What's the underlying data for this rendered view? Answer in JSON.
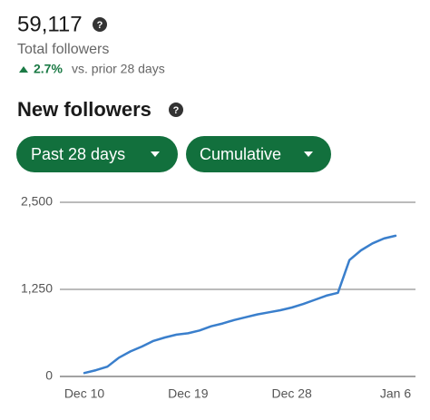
{
  "header": {
    "followers": "59,117",
    "label": "Total followers",
    "change": "2.7%",
    "comparison": "vs. prior 28 days"
  },
  "section": {
    "title": "New followers",
    "filters": [
      "Past 28 days",
      "Cumulative"
    ]
  },
  "chart_data": {
    "type": "line",
    "categories": [
      "Dec 10",
      null,
      null,
      null,
      null,
      null,
      null,
      null,
      null,
      "Dec 19",
      null,
      null,
      null,
      null,
      null,
      null,
      null,
      null,
      "Dec 28",
      null,
      null,
      null,
      null,
      null,
      null,
      null,
      null,
      "Jan 6"
    ],
    "values": [
      50,
      90,
      140,
      270,
      360,
      430,
      510,
      560,
      600,
      620,
      660,
      720,
      760,
      810,
      850,
      890,
      920,
      950,
      990,
      1040,
      1100,
      1160,
      1200,
      1670,
      1810,
      1910,
      1980,
      2020
    ],
    "color": "#3a7fcc",
    "ylim": [
      0,
      2500
    ],
    "yticks": [
      0,
      {
        "value": 1250,
        "label": "1,250"
      },
      {
        "value": 2500,
        "label": "2,500"
      }
    ],
    "grid": true
  }
}
